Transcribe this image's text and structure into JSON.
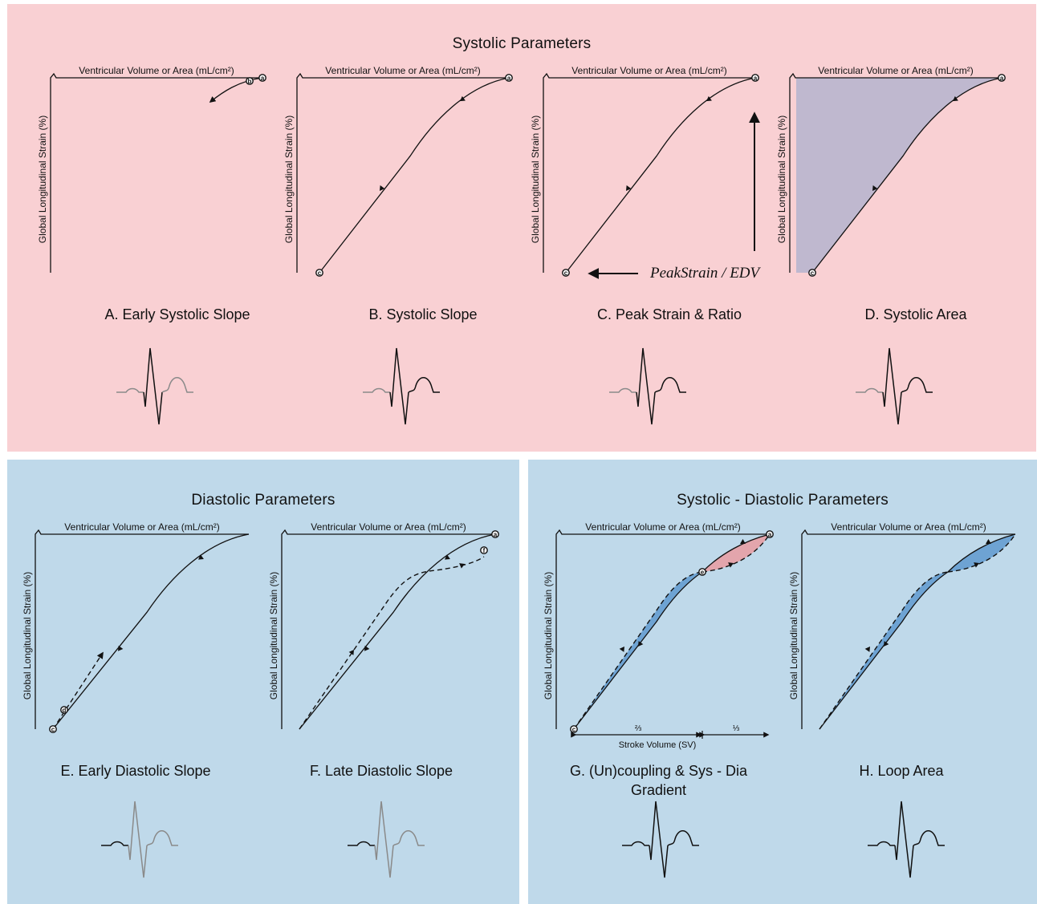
{
  "systolic_panel": {
    "title": "Systolic Parameters",
    "captions": [
      "A. Early Systolic Slope",
      "B. Systolic Slope",
      "C. Peak Strain & Ratio",
      "D. Systolic Area"
    ]
  },
  "diastolic_panel": {
    "title": "Diastolic Parameters",
    "captions": [
      "E. Early Diastolic Slope",
      "F. Late Diastolic Slope"
    ]
  },
  "sysdia_panel": {
    "title": "Systolic - Diastolic Parameters",
    "captions": [
      "G. (Un)coupling & Sys - Dia Gradient",
      "H. Loop Area"
    ]
  },
  "axes": {
    "x_label": "Ventricular Volume or Area (mL/cm²)",
    "y_label": "Global Longitudinal Strain (%)"
  },
  "points": {
    "a": "a",
    "b": "b",
    "c": "c",
    "d": "d",
    "e": "e",
    "f": "f"
  },
  "formula": "PeakStrain / EDV",
  "stroke_volume": {
    "label": "Stroke Volume (SV)",
    "early_fraction": "⅔",
    "late_fraction": "⅓"
  },
  "colors": {
    "systolic_bg": "#f9d0d3",
    "diastolic_bg": "#bfd9ea",
    "area_fill": "#bfb8cf",
    "loop_blue": "#6ea3d3",
    "loop_red": "#e3a5ac",
    "ecg_highlight": "#111111",
    "ecg_gray": "#8a8a8a"
  }
}
